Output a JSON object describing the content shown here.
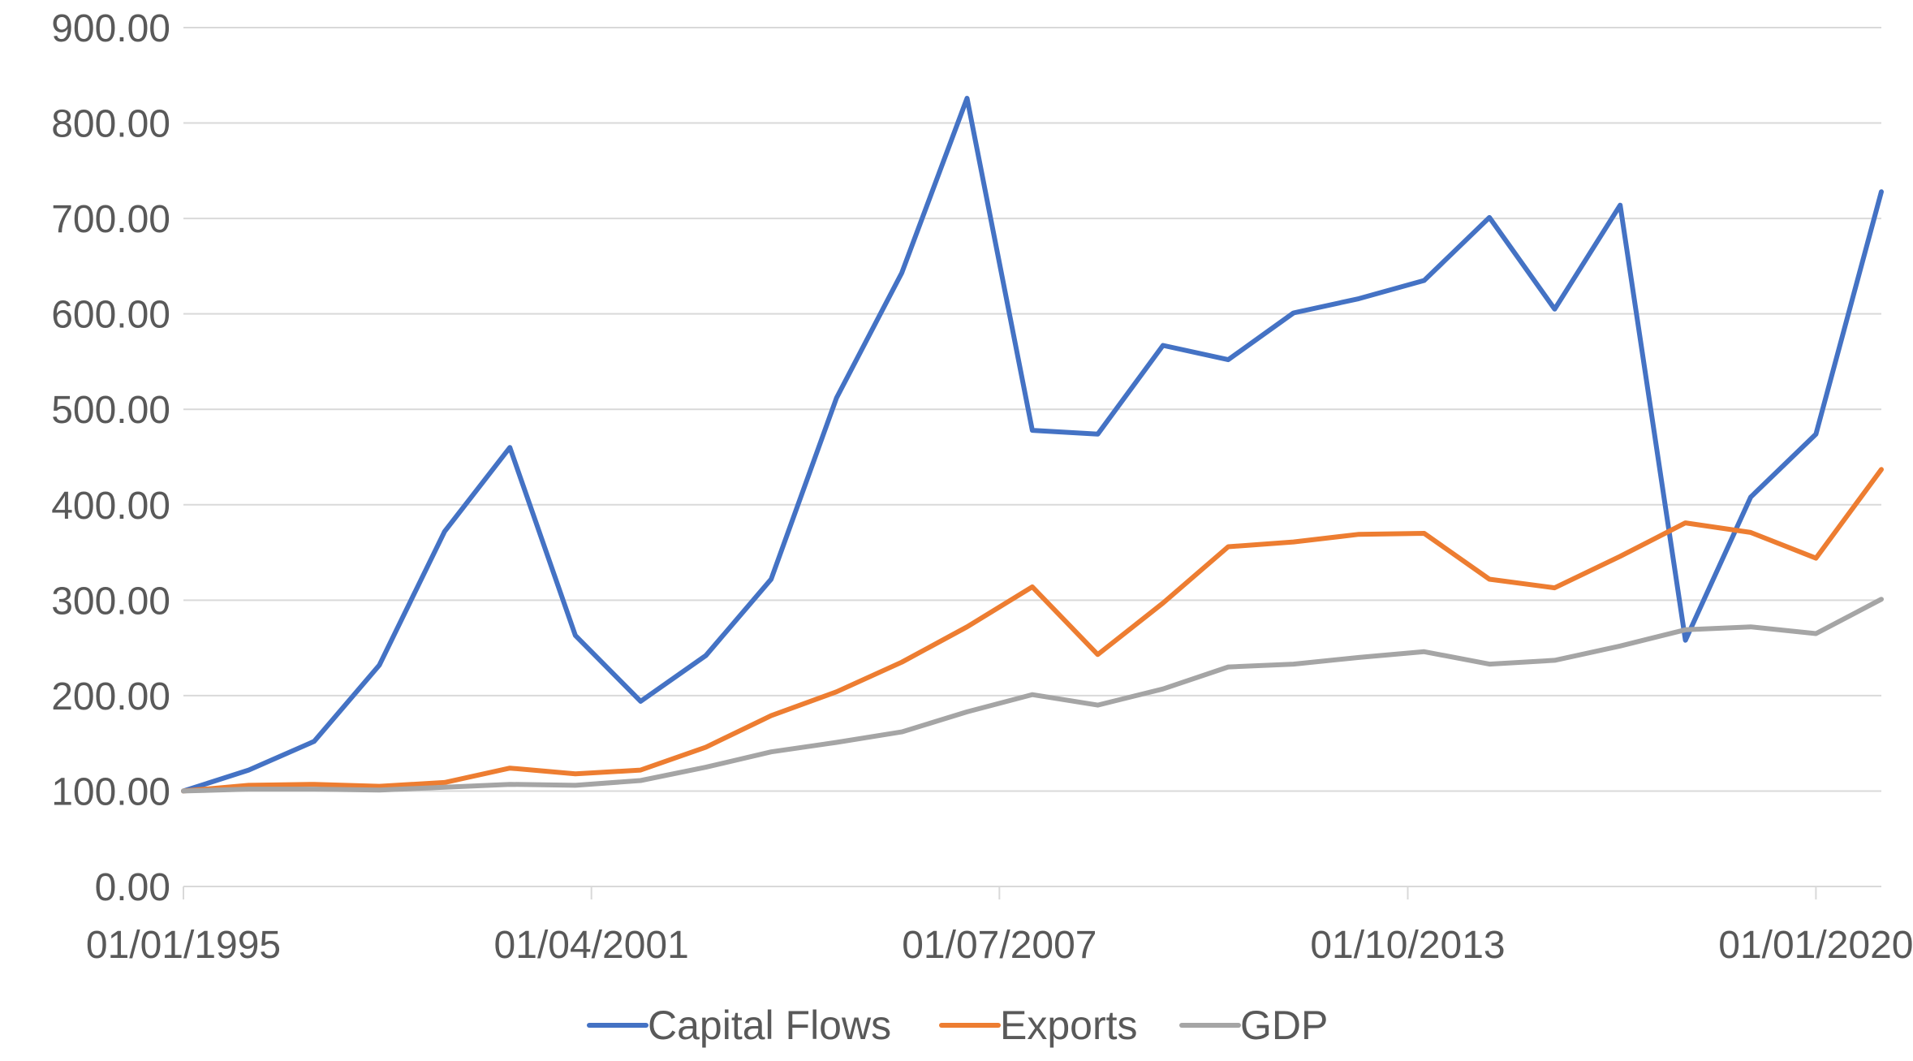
{
  "chart_data": {
    "type": "line",
    "title": "",
    "xlabel": "",
    "ylabel": "",
    "ylim": [
      0,
      900
    ],
    "yticks": [
      "0.00",
      "100.00",
      "200.00",
      "300.00",
      "400.00",
      "500.00",
      "600.00",
      "700.00",
      "800.00",
      "900.00"
    ],
    "xticks": [
      {
        "label": "01/01/1995",
        "date": "1995-01-01"
      },
      {
        "label": "01/04/2001",
        "date": "2001-04-01"
      },
      {
        "label": "01/07/2007",
        "date": "2007-07-01"
      },
      {
        "label": "01/10/2013",
        "date": "2013-10-01"
      },
      {
        "label": "01/01/2020",
        "date": "2020-01-01"
      }
    ],
    "x": [
      "1995-01-01",
      "1996-01-01",
      "1997-01-01",
      "1998-01-01",
      "1999-01-01",
      "2000-01-01",
      "2001-01-01",
      "2002-01-01",
      "2003-01-01",
      "2004-01-01",
      "2005-01-01",
      "2006-01-01",
      "2007-01-01",
      "2008-01-01",
      "2009-01-01",
      "2010-01-01",
      "2011-01-01",
      "2012-01-01",
      "2013-01-01",
      "2014-01-01",
      "2015-01-01",
      "2016-01-01",
      "2017-01-01",
      "2018-01-01",
      "2019-01-01",
      "2020-01-01",
      "2021-01-01"
    ],
    "series": [
      {
        "name": "Capital Flows",
        "color": "#4472C4",
        "values": [
          100,
          122,
          152,
          232,
          372,
          460,
          263,
          194,
          242,
          322,
          512,
          643,
          826,
          478,
          474,
          567,
          552,
          601,
          616,
          635,
          701,
          605,
          714,
          258,
          408,
          474,
          728
        ]
      },
      {
        "name": "Exports",
        "color": "#ED7D31",
        "values": [
          100,
          106,
          107,
          105,
          109,
          124,
          118,
          122,
          146,
          179,
          204,
          235,
          272,
          314,
          243,
          297,
          356,
          361,
          369,
          370,
          322,
          313,
          346,
          381,
          371,
          344,
          437
        ]
      },
      {
        "name": "GDP",
        "color": "#A5A5A5",
        "values": [
          100,
          102,
          102,
          101,
          104,
          107,
          106,
          111,
          125,
          141,
          151,
          162,
          183,
          201,
          190,
          207,
          230,
          233,
          240,
          246,
          233,
          237,
          252,
          269,
          272,
          265,
          301
        ]
      }
    ],
    "legend": "bottom"
  }
}
